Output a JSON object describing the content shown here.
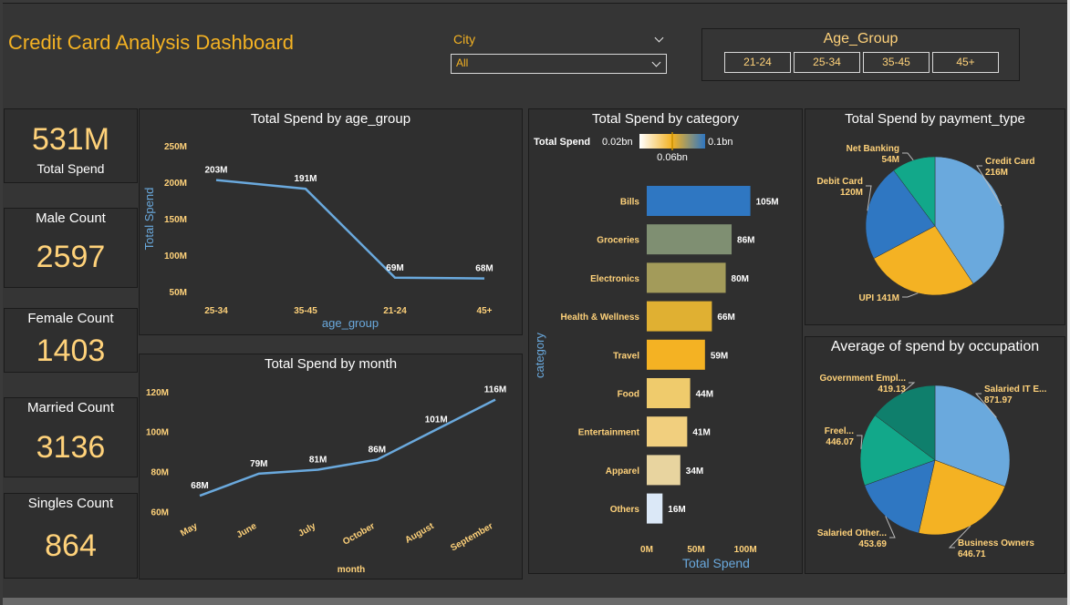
{
  "header": {
    "title": "Credit Card Analysis Dashboard",
    "city_label": "City",
    "city_value": "All",
    "age_group_label": "Age_Group",
    "age_group_options": [
      "21-24",
      "25-34",
      "35-45",
      "45+"
    ]
  },
  "kpis": {
    "total_spend": {
      "value": "531M",
      "label": "Total Spend"
    },
    "male_count": {
      "label": "Male Count",
      "value": "2597"
    },
    "female_count": {
      "label": "Female Count",
      "value": "1403"
    },
    "married_count": {
      "label": "Married Count",
      "value": "3136"
    },
    "singles_count": {
      "label": "Singles Count",
      "value": "864"
    }
  },
  "colors": {
    "accent": "#f4b223",
    "label_gold": "#ffd27a",
    "line_blue": "#6aa9dd",
    "panel_bg": "#2f2f2f",
    "page_bg": "#353535"
  },
  "chart_data": [
    {
      "id": "age",
      "type": "line",
      "title": "Total Spend by age_group",
      "xlabel": "age_group",
      "ylabel": "Total Spend",
      "categories": [
        "25-34",
        "35-45",
        "21-24",
        "45+"
      ],
      "values": [
        203,
        191,
        69,
        68
      ],
      "value_labels": [
        "203M",
        "191M",
        "69M",
        "68M"
      ],
      "y_ticks": [
        50,
        100,
        150,
        200,
        250
      ],
      "y_tick_labels": [
        "50M",
        "100M",
        "150M",
        "200M",
        "250M"
      ],
      "ylim": [
        40,
        260
      ],
      "units": "M",
      "grid": false
    },
    {
      "id": "month",
      "type": "line",
      "title": "Total Spend by month",
      "xlabel": "month",
      "ylabel": "",
      "categories": [
        "May",
        "June",
        "July",
        "October",
        "August",
        "September"
      ],
      "values": [
        68,
        79,
        81,
        86,
        101,
        116
      ],
      "value_labels": [
        "68M",
        "79M",
        "81M",
        "86M",
        "101M",
        "116M"
      ],
      "y_ticks": [
        60,
        80,
        100,
        120
      ],
      "y_tick_labels": [
        "60M",
        "80M",
        "100M",
        "120M"
      ],
      "ylim": [
        58,
        124
      ],
      "units": "M",
      "grid": false
    },
    {
      "id": "category",
      "type": "bar",
      "orientation": "horizontal",
      "title": "Total Spend by category",
      "xlabel": "Total Spend",
      "ylabel": "category",
      "categories": [
        "Bills",
        "Groceries",
        "Electronics",
        "Health & Wellness",
        "Travel",
        "Food",
        "Entertainment",
        "Apparel",
        "Others"
      ],
      "values": [
        105,
        86,
        80,
        66,
        59,
        44,
        41,
        34,
        16
      ],
      "value_labels": [
        "105M",
        "86M",
        "80M",
        "66M",
        "59M",
        "44M",
        "41M",
        "34M",
        "16M"
      ],
      "bar_colors": [
        "#2f77c2",
        "#7f8f72",
        "#a39b5a",
        "#e0b032",
        "#f4b223",
        "#efcb6c",
        "#f1cf7e",
        "#e8d49f",
        "#dbe8f7"
      ],
      "x_ticks": [
        0,
        50,
        100
      ],
      "x_tick_labels": [
        "0M",
        "50M",
        "100M"
      ],
      "xlim": [
        0,
        110
      ],
      "legend": {
        "title": "Total Spend",
        "min": "0.02bn",
        "mid": "0.06bn",
        "max": "0.1bn"
      }
    },
    {
      "id": "payment",
      "type": "pie",
      "title": "Total Spend by payment_type",
      "slices": [
        {
          "label": "Credit Card",
          "value": 216,
          "value_label": "216M",
          "color": "#6aa9dd"
        },
        {
          "label": "UPI",
          "value": 141,
          "value_label": "141M",
          "color": "#f4b223"
        },
        {
          "label": "Debit Card",
          "value": 120,
          "value_label": "120M",
          "color": "#2f77c2"
        },
        {
          "label": "Net Banking",
          "value": 54,
          "value_label": "54M",
          "color": "#12a88a"
        }
      ]
    },
    {
      "id": "occupation",
      "type": "pie",
      "title": "Average of spend by occupation",
      "slices": [
        {
          "label": "Salaried IT E...",
          "value": 871.97,
          "value_label": "871.97",
          "color": "#6aa9dd"
        },
        {
          "label": "Business Owners",
          "value": 646.71,
          "value_label": "646.71",
          "color": "#f4b223"
        },
        {
          "label": "Salaried Other...",
          "value": 453.69,
          "value_label": "453.69",
          "color": "#2f77c2"
        },
        {
          "label": "Freel...",
          "value": 446.07,
          "value_label": "446.07",
          "color": "#12a88a"
        },
        {
          "label": "Government Empl...",
          "value": 419.13,
          "value_label": "419.13",
          "color": "#0f7f6c"
        }
      ]
    }
  ]
}
